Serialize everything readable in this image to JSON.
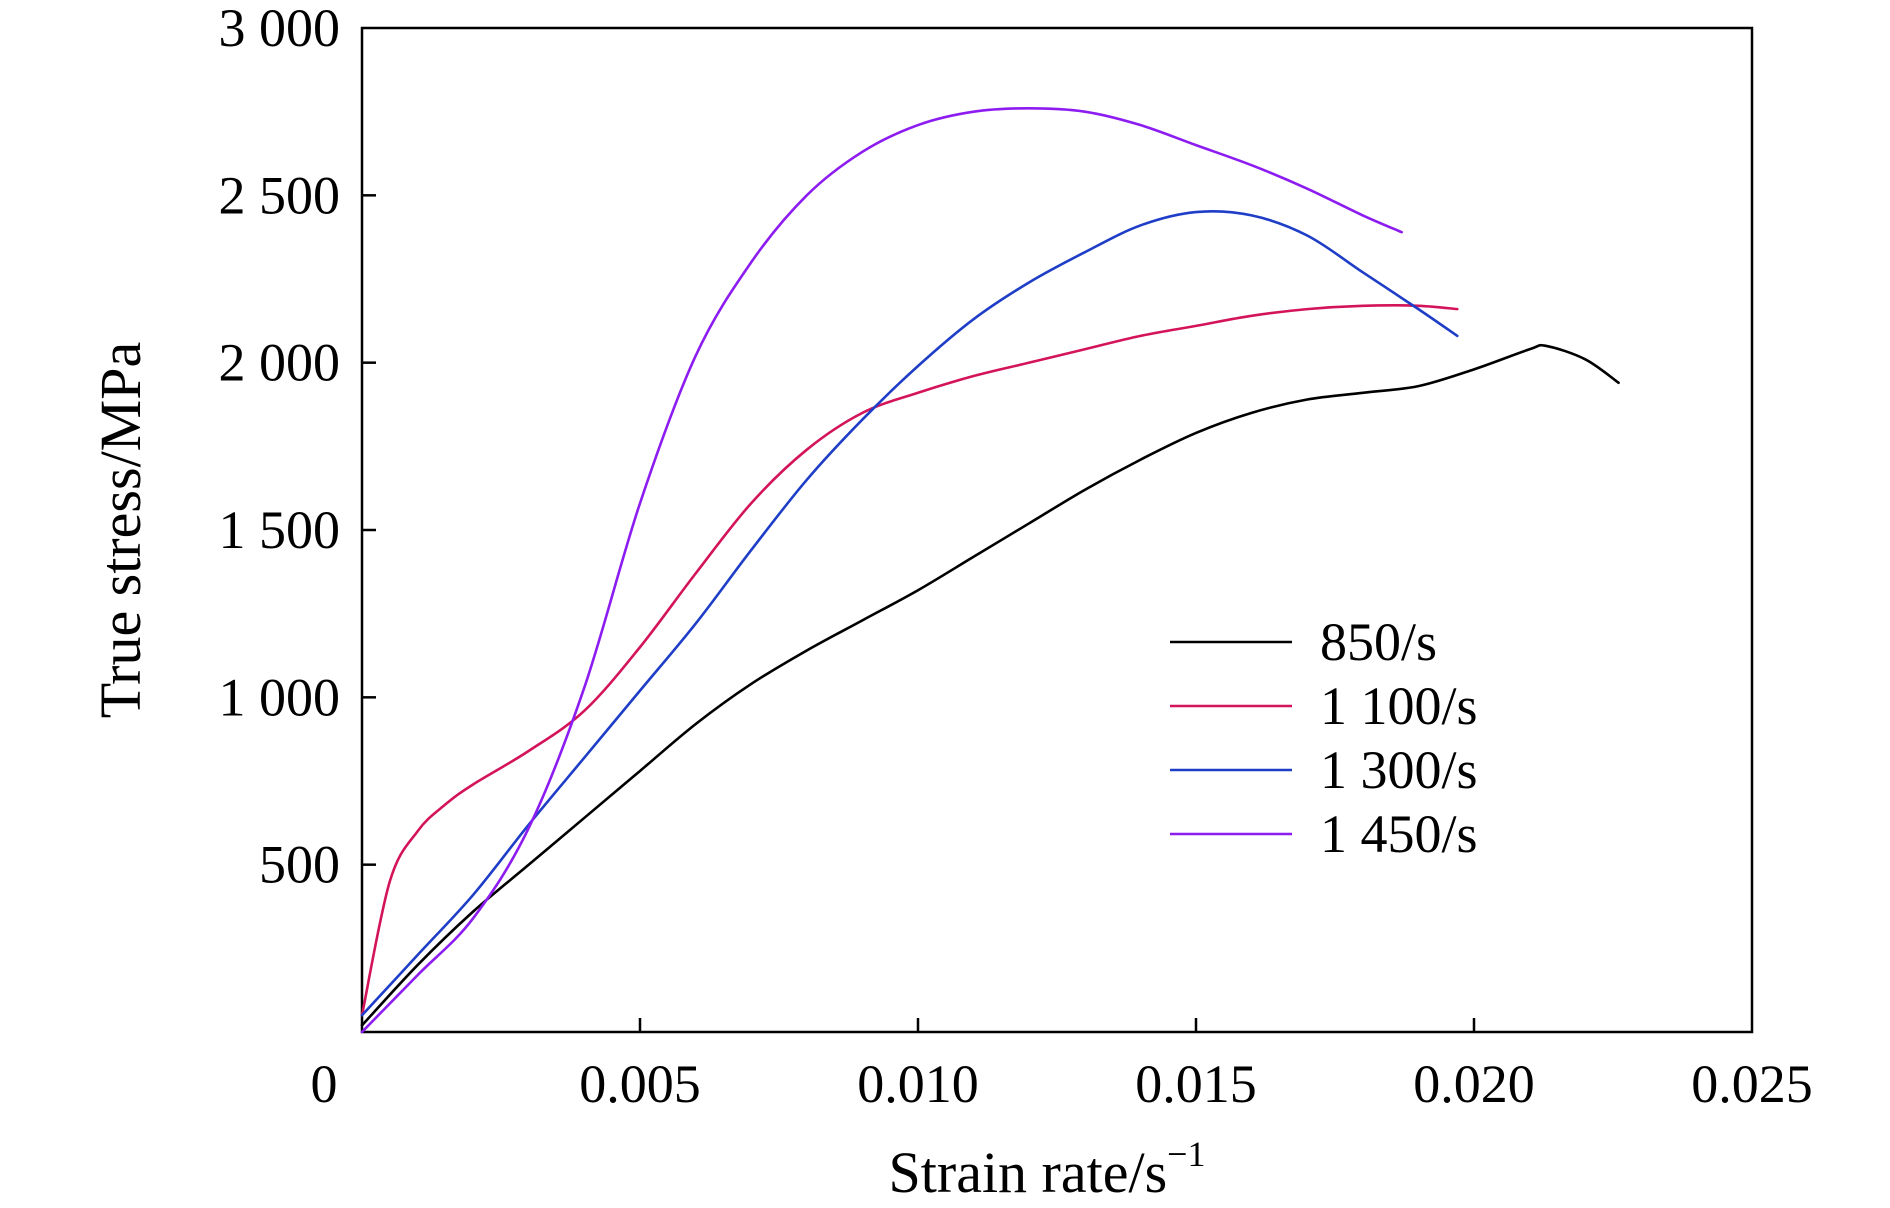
{
  "chart_data": {
    "type": "line",
    "title": "",
    "xlabel": "Strain rate/s",
    "xlabel_superscript": "−1",
    "ylabel": "True stress/MPa",
    "xlim": [
      0,
      0.025
    ],
    "ylim": [
      0,
      3000
    ],
    "x_ticks": [
      0,
      0.005,
      0.01,
      0.015,
      0.02,
      0.025
    ],
    "x_tick_labels": [
      "0",
      "0.005",
      "0.010",
      "0.015",
      "0.020",
      "0.025"
    ],
    "y_ticks": [
      500,
      1000,
      1500,
      2000,
      2500,
      3000
    ],
    "y_tick_labels": [
      "500",
      "1 000",
      "1 500",
      "2 000",
      "2 500",
      "3 000"
    ],
    "grid": false,
    "legend_position": "lower-right",
    "series": [
      {
        "name": "850/s",
        "color": "#000000",
        "x": [
          0,
          0.001,
          0.002,
          0.003,
          0.004,
          0.005,
          0.006,
          0.007,
          0.008,
          0.009,
          0.01,
          0.011,
          0.012,
          0.013,
          0.014,
          0.015,
          0.016,
          0.017,
          0.018,
          0.019,
          0.02,
          0.021,
          0.0213,
          0.022,
          0.0226
        ],
        "y": [
          20,
          200,
          360,
          500,
          640,
          780,
          920,
          1040,
          1140,
          1230,
          1320,
          1420,
          1520,
          1620,
          1710,
          1790,
          1850,
          1890,
          1910,
          1930,
          1980,
          2040,
          2050,
          2010,
          1940
        ]
      },
      {
        "name": "1 100/s",
        "color": "#d4145a",
        "x": [
          0,
          0.0005,
          0.001,
          0.0015,
          0.002,
          0.003,
          0.004,
          0.005,
          0.006,
          0.007,
          0.008,
          0.009,
          0.01,
          0.011,
          0.012,
          0.013,
          0.014,
          0.015,
          0.016,
          0.017,
          0.018,
          0.019,
          0.0197
        ],
        "y": [
          50,
          450,
          600,
          680,
          740,
          840,
          960,
          1150,
          1370,
          1580,
          1740,
          1850,
          1910,
          1960,
          2000,
          2040,
          2080,
          2110,
          2140,
          2160,
          2170,
          2170,
          2160
        ]
      },
      {
        "name": "1 300/s",
        "color": "#1f3ec8",
        "x": [
          0,
          0.001,
          0.002,
          0.003,
          0.004,
          0.005,
          0.006,
          0.007,
          0.008,
          0.009,
          0.01,
          0.011,
          0.012,
          0.013,
          0.014,
          0.015,
          0.016,
          0.017,
          0.018,
          0.019,
          0.0197
        ],
        "y": [
          50,
          230,
          410,
          620,
          820,
          1020,
          1220,
          1440,
          1650,
          1830,
          1990,
          2130,
          2240,
          2330,
          2410,
          2450,
          2440,
          2380,
          2270,
          2160,
          2080
        ]
      },
      {
        "name": "1 450/s",
        "color": "#8c1cf0",
        "x": [
          0,
          0.001,
          0.002,
          0.003,
          0.004,
          0.005,
          0.006,
          0.007,
          0.008,
          0.009,
          0.01,
          0.011,
          0.012,
          0.013,
          0.014,
          0.015,
          0.016,
          0.017,
          0.018,
          0.0187
        ],
        "y": [
          0,
          170,
          340,
          610,
          1030,
          1580,
          2020,
          2300,
          2500,
          2630,
          2710,
          2750,
          2760,
          2750,
          2710,
          2650,
          2590,
          2520,
          2440,
          2390
        ]
      }
    ]
  }
}
